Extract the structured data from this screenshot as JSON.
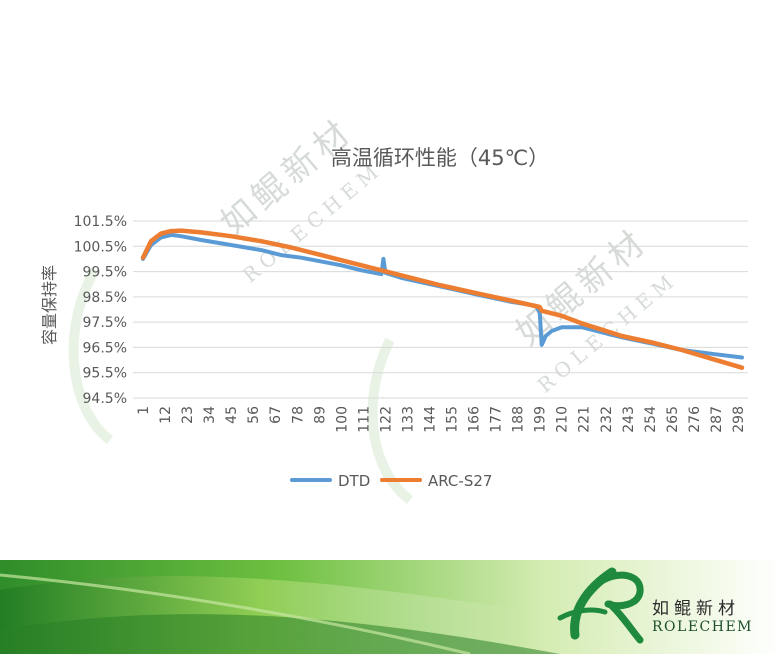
{
  "watermark": {
    "text_cn": "如鲲新材",
    "text_en": "ROLECHEM"
  },
  "brand": {
    "name_cn": "如鲲新材",
    "name_en": "ROLECHEM"
  },
  "colors": {
    "dtd": "#5b9bd5",
    "arc": "#ed7d31",
    "grid": "#d9d9d9",
    "text": "#595959",
    "band_green": "#3f9e34",
    "logo_green": "#1f8a3d"
  },
  "chart_data": {
    "type": "line",
    "title": "高温循环性能（45℃）",
    "xlabel": "",
    "ylabel": "容量保持率",
    "ylim": [
      94.5,
      101.5
    ],
    "yticks": [
      "101.5%",
      "100.5%",
      "99.5%",
      "98.5%",
      "97.5%",
      "96.5%",
      "95.5%",
      "94.5%"
    ],
    "xlim": [
      1,
      300
    ],
    "xticks": [
      "1",
      "12",
      "23",
      "34",
      "45",
      "56",
      "67",
      "78",
      "89",
      "100",
      "111",
      "122",
      "133",
      "144",
      "155",
      "166",
      "177",
      "188",
      "199",
      "210",
      "221",
      "232",
      "243",
      "254",
      "265",
      "276",
      "287",
      "298"
    ],
    "legend_position": "bottom",
    "grid": true,
    "series": [
      {
        "name": "DTD",
        "points": [
          [
            1,
            100.0
          ],
          [
            5,
            100.55
          ],
          [
            10,
            100.85
          ],
          [
            15,
            100.95
          ],
          [
            20,
            100.9
          ],
          [
            30,
            100.75
          ],
          [
            45,
            100.55
          ],
          [
            60,
            100.35
          ],
          [
            70,
            100.15
          ],
          [
            80,
            100.05
          ],
          [
            100,
            99.75
          ],
          [
            110,
            99.55
          ],
          [
            120,
            99.4
          ],
          [
            121,
            100.0
          ],
          [
            122,
            99.45
          ],
          [
            130,
            99.25
          ],
          [
            150,
            98.9
          ],
          [
            170,
            98.55
          ],
          [
            185,
            98.3
          ],
          [
            197,
            98.15
          ],
          [
            199,
            97.9
          ],
          [
            200,
            96.6
          ],
          [
            202,
            96.95
          ],
          [
            205,
            97.15
          ],
          [
            210,
            97.3
          ],
          [
            220,
            97.3
          ],
          [
            230,
            97.1
          ],
          [
            240,
            96.9
          ],
          [
            255,
            96.65
          ],
          [
            270,
            96.4
          ],
          [
            285,
            96.25
          ],
          [
            300,
            96.1
          ]
        ]
      },
      {
        "name": "ARC-S27",
        "points": [
          [
            1,
            100.05
          ],
          [
            5,
            100.7
          ],
          [
            10,
            101.0
          ],
          [
            15,
            101.1
          ],
          [
            20,
            101.12
          ],
          [
            30,
            101.05
          ],
          [
            45,
            100.9
          ],
          [
            60,
            100.7
          ],
          [
            75,
            100.45
          ],
          [
            90,
            100.15
          ],
          [
            100,
            99.95
          ],
          [
            115,
            99.65
          ],
          [
            130,
            99.35
          ],
          [
            150,
            98.95
          ],
          [
            170,
            98.6
          ],
          [
            185,
            98.35
          ],
          [
            199,
            98.1
          ],
          [
            200,
            97.95
          ],
          [
            210,
            97.75
          ],
          [
            220,
            97.45
          ],
          [
            230,
            97.2
          ],
          [
            240,
            96.95
          ],
          [
            255,
            96.7
          ],
          [
            270,
            96.4
          ],
          [
            285,
            96.05
          ],
          [
            300,
            95.7
          ]
        ]
      }
    ]
  }
}
